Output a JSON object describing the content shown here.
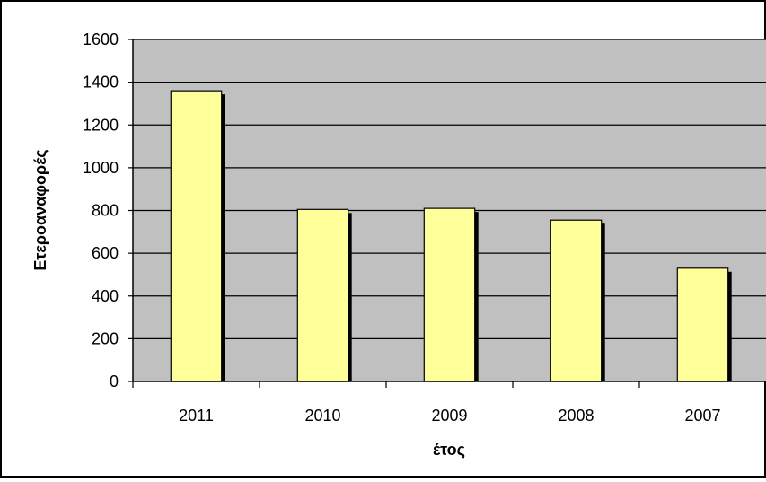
{
  "chart_data": {
    "type": "bar",
    "categories": [
      "2011",
      "2010",
      "2009",
      "2008",
      "2007"
    ],
    "values": [
      1360,
      805,
      810,
      755,
      530
    ],
    "title": "",
    "xlabel": "έτος",
    "ylabel": "Ετεροαναφορές",
    "ylim": [
      0,
      1600
    ],
    "yticks": [
      0,
      200,
      400,
      600,
      800,
      1000,
      1200,
      1400,
      1600
    ],
    "grid": true,
    "legend": "none",
    "colors": {
      "plot_background": "#c0c0c0",
      "bar_fill": "#ffff99",
      "bar_shadow": "#000000",
      "gridline": "#000000",
      "frame": "#000000",
      "page_background": "#ffffff"
    }
  }
}
